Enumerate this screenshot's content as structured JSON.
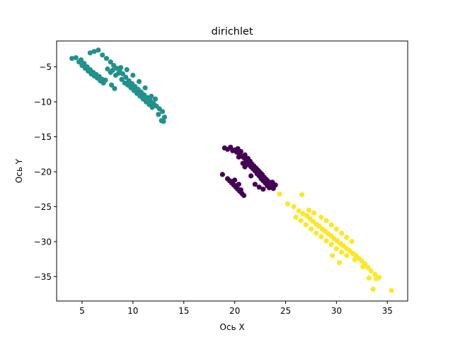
{
  "chart_data": {
    "type": "scatter",
    "title": "dirichlet",
    "xlabel": "Ось X",
    "ylabel": "Ось Y",
    "xlim": [
      2.5,
      37.0
    ],
    "ylim": [
      -38.5,
      -1.3
    ],
    "xticks": [
      5,
      10,
      15,
      20,
      25,
      30,
      35
    ],
    "yticks": [
      -5,
      -10,
      -15,
      -20,
      -25,
      -30,
      -35
    ],
    "grid": false,
    "legend": "none",
    "series": [
      {
        "color": "#440154",
        "points": [
          [
            19.0,
            -16.6
          ],
          [
            19.3,
            -16.8
          ],
          [
            19.6,
            -16.5
          ],
          [
            19.8,
            -17.0
          ],
          [
            20.0,
            -16.9
          ],
          [
            20.2,
            -17.2
          ],
          [
            20.3,
            -16.7
          ],
          [
            20.5,
            -17.5
          ],
          [
            20.6,
            -17.1
          ],
          [
            20.7,
            -17.8
          ],
          [
            20.9,
            -18.0
          ],
          [
            21.0,
            -17.6
          ],
          [
            21.1,
            -18.3
          ],
          [
            21.2,
            -18.7
          ],
          [
            21.3,
            -18.1
          ],
          [
            21.4,
            -19.0
          ],
          [
            21.5,
            -18.5
          ],
          [
            21.6,
            -19.3
          ],
          [
            21.7,
            -18.9
          ],
          [
            21.8,
            -19.6
          ],
          [
            21.9,
            -19.2
          ],
          [
            22.0,
            -19.9
          ],
          [
            22.1,
            -19.5
          ],
          [
            22.2,
            -20.3
          ],
          [
            22.3,
            -19.8
          ],
          [
            22.4,
            -20.6
          ],
          [
            22.5,
            -20.1
          ],
          [
            22.6,
            -21.0
          ],
          [
            22.7,
            -20.4
          ],
          [
            22.8,
            -21.3
          ],
          [
            22.9,
            -20.8
          ],
          [
            23.0,
            -21.6
          ],
          [
            23.1,
            -21.1
          ],
          [
            23.2,
            -22.0
          ],
          [
            23.3,
            -21.4
          ],
          [
            23.4,
            -22.3
          ],
          [
            23.5,
            -21.8
          ],
          [
            23.6,
            -22.1
          ],
          [
            23.7,
            -21.5
          ],
          [
            23.8,
            -22.4
          ],
          [
            24.0,
            -21.9
          ],
          [
            22.0,
            -21.8
          ],
          [
            22.4,
            -22.2
          ],
          [
            22.8,
            -22.5
          ],
          [
            21.6,
            -20.6
          ],
          [
            20.8,
            -18.8
          ],
          [
            21.0,
            -19.3
          ],
          [
            20.4,
            -17.9
          ],
          [
            18.8,
            -20.4
          ],
          [
            19.3,
            -21.0
          ],
          [
            19.5,
            -21.3
          ],
          [
            19.7,
            -21.6
          ],
          [
            19.9,
            -21.9
          ],
          [
            20.1,
            -22.2
          ],
          [
            20.3,
            -22.5
          ],
          [
            20.5,
            -22.8
          ],
          [
            20.7,
            -23.1
          ],
          [
            20.9,
            -23.4
          ],
          [
            19.8,
            -21.4
          ],
          [
            20.2,
            -22.0
          ],
          [
            20.6,
            -22.6
          ],
          [
            20.0,
            -21.2
          ],
          [
            20.4,
            -21.8
          ]
        ]
      },
      {
        "color": "#21918c",
        "points": [
          [
            4.0,
            -3.8
          ],
          [
            4.4,
            -3.7
          ],
          [
            4.7,
            -4.3
          ],
          [
            4.9,
            -4.0
          ],
          [
            5.0,
            -4.8
          ],
          [
            5.2,
            -4.5
          ],
          [
            5.3,
            -5.2
          ],
          [
            5.5,
            -5.0
          ],
          [
            5.6,
            -5.6
          ],
          [
            5.8,
            -5.4
          ],
          [
            5.9,
            -6.0
          ],
          [
            6.1,
            -5.8
          ],
          [
            6.2,
            -6.3
          ],
          [
            6.4,
            -6.1
          ],
          [
            6.5,
            -6.6
          ],
          [
            6.7,
            -6.4
          ],
          [
            6.8,
            -7.0
          ],
          [
            7.0,
            -6.8
          ],
          [
            7.1,
            -7.3
          ],
          [
            5.8,
            -3.0
          ],
          [
            6.2,
            -2.8
          ],
          [
            6.6,
            -2.6
          ],
          [
            7.0,
            -3.3
          ],
          [
            7.4,
            -3.8
          ],
          [
            7.8,
            -4.3
          ],
          [
            8.1,
            -4.8
          ],
          [
            8.4,
            -5.2
          ],
          [
            8.7,
            -5.6
          ],
          [
            9.0,
            -6.0
          ],
          [
            9.3,
            -6.5
          ],
          [
            9.6,
            -7.0
          ],
          [
            9.9,
            -7.4
          ],
          [
            10.2,
            -7.8
          ],
          [
            10.5,
            -8.2
          ],
          [
            10.8,
            -8.6
          ],
          [
            11.1,
            -9.0
          ],
          [
            11.4,
            -9.4
          ],
          [
            11.7,
            -9.8
          ],
          [
            12.0,
            -10.2
          ],
          [
            12.3,
            -10.6
          ],
          [
            12.6,
            -11.0
          ],
          [
            12.9,
            -11.4
          ],
          [
            13.1,
            -12.2
          ],
          [
            12.8,
            -12.7
          ],
          [
            13.0,
            -12.8
          ],
          [
            12.5,
            -11.8
          ],
          [
            7.5,
            -5.3
          ],
          [
            7.8,
            -5.8
          ],
          [
            8.0,
            -5.5
          ],
          [
            8.3,
            -6.2
          ],
          [
            8.6,
            -5.9
          ],
          [
            8.9,
            -6.8
          ],
          [
            9.2,
            -7.3
          ],
          [
            9.5,
            -7.6
          ],
          [
            9.8,
            -8.0
          ],
          [
            10.1,
            -8.4
          ],
          [
            10.4,
            -8.8
          ],
          [
            10.7,
            -9.2
          ],
          [
            11.0,
            -9.6
          ],
          [
            11.3,
            -10.0
          ],
          [
            11.6,
            -10.4
          ],
          [
            11.9,
            -10.8
          ],
          [
            8.8,
            -5.1
          ],
          [
            9.4,
            -5.4
          ],
          [
            10.0,
            -6.2
          ],
          [
            10.6,
            -7.1
          ],
          [
            11.2,
            -8.0
          ],
          [
            11.8,
            -9.2
          ],
          [
            8.2,
            -8.1
          ],
          [
            7.9,
            -7.6
          ],
          [
            7.3,
            -6.9
          ],
          [
            12.2,
            -9.6
          ]
        ]
      },
      {
        "color": "#fde725",
        "points": [
          [
            24.4,
            -23.2
          ],
          [
            26.6,
            -23.3
          ],
          [
            25.2,
            -24.6
          ],
          [
            25.8,
            -25.0
          ],
          [
            26.3,
            -25.6
          ],
          [
            26.7,
            -26.0
          ],
          [
            27.1,
            -26.3
          ],
          [
            27.4,
            -26.7
          ],
          [
            27.7,
            -27.1
          ],
          [
            28.0,
            -27.5
          ],
          [
            28.3,
            -27.8
          ],
          [
            28.6,
            -28.2
          ],
          [
            28.9,
            -28.5
          ],
          [
            29.2,
            -28.9
          ],
          [
            29.5,
            -29.2
          ],
          [
            29.8,
            -29.6
          ],
          [
            30.1,
            -29.9
          ],
          [
            30.4,
            -30.3
          ],
          [
            30.7,
            -30.6
          ],
          [
            31.0,
            -31.0
          ],
          [
            31.3,
            -31.3
          ],
          [
            31.6,
            -31.7
          ],
          [
            31.9,
            -32.0
          ],
          [
            32.2,
            -32.4
          ],
          [
            32.5,
            -32.8
          ],
          [
            32.8,
            -33.2
          ],
          [
            33.1,
            -33.7
          ],
          [
            33.4,
            -34.2
          ],
          [
            33.8,
            -34.7
          ],
          [
            34.2,
            -35.1
          ],
          [
            33.9,
            -35.3
          ],
          [
            33.2,
            -35.2
          ],
          [
            32.6,
            -33.6
          ],
          [
            33.6,
            -36.8
          ],
          [
            35.4,
            -37.0
          ],
          [
            26.0,
            -26.5
          ],
          [
            26.5,
            -27.0
          ],
          [
            27.0,
            -27.6
          ],
          [
            27.5,
            -28.2
          ],
          [
            28.0,
            -28.8
          ],
          [
            28.5,
            -29.3
          ],
          [
            29.0,
            -29.9
          ],
          [
            29.5,
            -30.4
          ],
          [
            30.0,
            -31.0
          ],
          [
            30.5,
            -31.5
          ],
          [
            31.0,
            -32.0
          ],
          [
            28.5,
            -26.5
          ],
          [
            29.0,
            -27.0
          ],
          [
            29.5,
            -27.6
          ],
          [
            30.0,
            -28.2
          ],
          [
            30.5,
            -28.8
          ],
          [
            31.0,
            -29.4
          ],
          [
            31.5,
            -30.0
          ],
          [
            30.3,
            -33.0
          ],
          [
            29.6,
            -32.0
          ],
          [
            31.8,
            -32.6
          ],
          [
            27.8,
            -25.9
          ],
          [
            27.3,
            -25.5
          ]
        ]
      }
    ]
  }
}
